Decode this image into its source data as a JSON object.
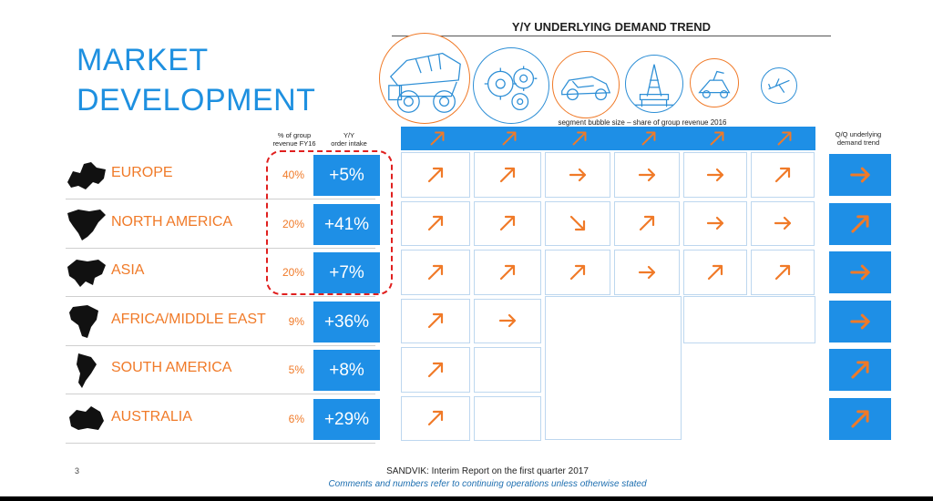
{
  "title_line1": "MARKET",
  "title_line2": "DEVELOPMENT",
  "trend_title": "Y/Y UNDERLYING DEMAND TREND",
  "segment_caption": "segment bubble size – share of group revenue 2016",
  "headers": {
    "pct_line1": "% of group",
    "pct_line2": "revenue FY16",
    "yy_line1": "Y/Y",
    "yy_line2": "order intake",
    "qq_line1": "Q/Q underlying",
    "qq_line2": "demand trend"
  },
  "segments": [
    {
      "icon": "mining-truck-icon",
      "color": "orange"
    },
    {
      "icon": "gears-icon",
      "color": "blue"
    },
    {
      "icon": "car-icon",
      "color": "orange"
    },
    {
      "icon": "oil-rig-icon",
      "color": "blue"
    },
    {
      "icon": "construction-icon",
      "color": "orange"
    },
    {
      "icon": "airplane-icon",
      "color": "blue"
    }
  ],
  "rows": [
    {
      "region": "EUROPE",
      "pct": "40%",
      "yy": "+5%",
      "map": "europe-map-icon",
      "trends": [
        "up-right",
        "up-right",
        "right",
        "right",
        "right",
        "up-right"
      ],
      "qq": "right"
    },
    {
      "region": "NORTH AMERICA",
      "pct": "20%",
      "yy": "+41%",
      "map": "north-america-map-icon",
      "trends": [
        "up-right",
        "up-right",
        "down-right",
        "up-right",
        "right",
        "right"
      ],
      "qq": "up-right"
    },
    {
      "region": "ASIA",
      "pct": "20%",
      "yy": "+7%",
      "map": "asia-map-icon",
      "trends": [
        "up-right",
        "up-right",
        "up-right",
        "right",
        "up-right",
        "up-right"
      ],
      "qq": "right"
    },
    {
      "region": "AFRICA/MIDDLE EAST",
      "pct": "9%",
      "yy": "+36%",
      "map": "africa-map-icon",
      "trends": [
        "up-right",
        "right"
      ],
      "qq": "right"
    },
    {
      "region": "SOUTH AMERICA",
      "pct": "5%",
      "yy": "+8%",
      "map": "south-america-map-icon",
      "trends": [
        "up-right"
      ],
      "qq": "up-right"
    },
    {
      "region": "AUSTRALIA",
      "pct": "6%",
      "yy": "+29%",
      "map": "australia-map-icon",
      "trends": [
        "up-right"
      ],
      "qq": "up-right"
    }
  ],
  "colors": {
    "accent_blue": "#1e8fe6",
    "accent_orange": "#f07a28",
    "highlight_red": "#e0201f"
  },
  "page_number": "3",
  "footer_line1": "SANDVIK: Interim Report on the first quarter 2017",
  "footer_line2": "Comments and numbers refer to continuing operations unless otherwise stated"
}
